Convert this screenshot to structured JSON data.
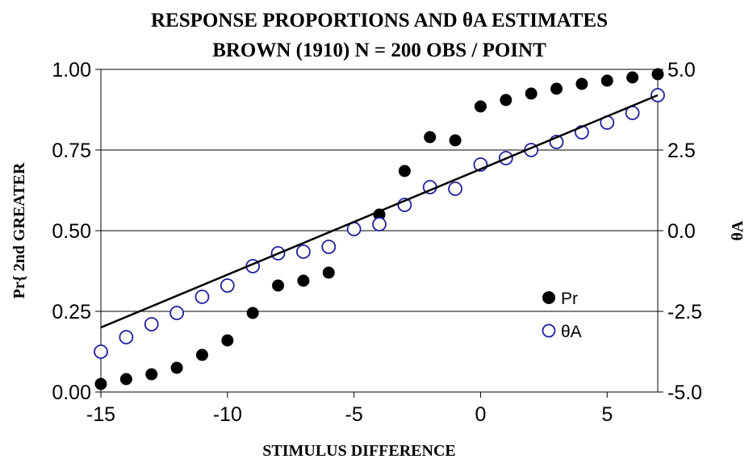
{
  "chart_data": {
    "type": "scatter",
    "title": "RESPONSE PROPORTIONS AND θA ESTIMATES",
    "subtitle": "BROWN (1910) N = 200 OBS / POINT",
    "xlabel": "STIMULUS DIFFERENCE",
    "ylabel": "Pr{ 2nd GREATER",
    "y2label": "θA",
    "xlim": [
      -15,
      7
    ],
    "ylim": [
      0,
      1
    ],
    "y2lim": [
      -5,
      5
    ],
    "x_ticks": [
      "-15",
      "-10",
      "-5",
      "0",
      "5"
    ],
    "y_ticks": [
      "0.00",
      "0.25",
      "0.50",
      "0.75",
      "1.00"
    ],
    "y2_ticks": [
      "-5.0",
      "-2.5",
      "0.0",
      "2.5",
      "5.0"
    ],
    "gridlines": "horizontal",
    "legend_position": "right",
    "series": [
      {
        "name": "Pr",
        "axis": "left",
        "marker": "filled-circle",
        "color": "#000000",
        "x": [
          -15,
          -14,
          -13,
          -12,
          -11,
          -10,
          -9,
          -8,
          -7,
          -6,
          -5,
          -4,
          -3,
          -2,
          -1,
          0,
          1,
          2,
          3,
          4,
          5,
          6,
          7
        ],
        "y": [
          0.025,
          0.04,
          0.055,
          0.075,
          0.115,
          0.16,
          0.245,
          0.33,
          0.345,
          0.37,
          0.51,
          0.55,
          0.685,
          0.79,
          0.78,
          0.885,
          0.905,
          0.925,
          0.94,
          0.955,
          0.965,
          0.975,
          0.985
        ]
      },
      {
        "name": "θA",
        "axis": "right",
        "marker": "open-circle",
        "color": "#1f1f9f",
        "x": [
          -15,
          -14,
          -13,
          -12,
          -11,
          -10,
          -9,
          -8,
          -7,
          -6,
          -5,
          -4,
          -3,
          -2,
          -1,
          0,
          1,
          2,
          3,
          4,
          5,
          6,
          7
        ],
        "y": [
          -3.75,
          -3.3,
          -2.9,
          -2.55,
          -2.05,
          -1.7,
          -1.1,
          -0.7,
          -0.65,
          -0.5,
          0.05,
          0.2,
          0.8,
          1.35,
          1.3,
          2.05,
          2.25,
          2.5,
          2.75,
          3.05,
          3.35,
          3.65,
          4.2
        ]
      },
      {
        "name": "",
        "axis": "right",
        "type": "line",
        "color": "#000000",
        "x": [
          -15,
          7
        ],
        "y": [
          -3.0,
          4.2
        ]
      }
    ]
  }
}
